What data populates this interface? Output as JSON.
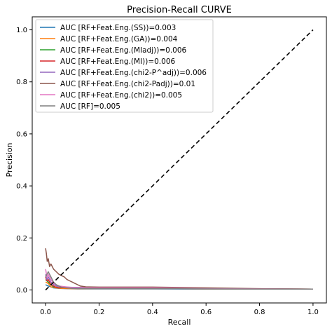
{
  "chart_data": {
    "type": "line",
    "title": "Precision-Recall CURVE",
    "xlabel": "Recall",
    "ylabel": "Precision",
    "xlim": [
      0.0,
      1.0
    ],
    "ylim": [
      0.0,
      1.0
    ],
    "xticks": [
      "0.0",
      "0.2",
      "0.4",
      "0.6",
      "0.8",
      "1.0"
    ],
    "yticks": [
      "0.0",
      "0.2",
      "0.4",
      "0.6",
      "0.8",
      "1.0"
    ],
    "grid": false,
    "legend_position": "top-left",
    "series": [
      {
        "name": "AUC [RF+Feat.Eng.(SS))=0.003",
        "color": "#1f77b4",
        "x": [
          0.0,
          0.01,
          0.02,
          0.03,
          0.05,
          0.08,
          0.12,
          0.2,
          0.4,
          0.6,
          0.8,
          1.0
        ],
        "y": [
          0.02,
          0.015,
          0.012,
          0.008,
          0.006,
          0.005,
          0.004,
          0.004,
          0.004,
          0.003,
          0.003,
          0.003
        ]
      },
      {
        "name": "AUC [RF+Feat.Eng.(GA))=0.004",
        "color": "#ff7f0e",
        "x": [
          0.0,
          0.01,
          0.02,
          0.04,
          0.06,
          0.1,
          0.2,
          0.4,
          0.6,
          0.8,
          1.0
        ],
        "y": [
          0.03,
          0.025,
          0.012,
          0.008,
          0.006,
          0.005,
          0.005,
          0.005,
          0.004,
          0.004,
          0.003
        ]
      },
      {
        "name": "AUC [RF+Feat.Eng.(MIadj))=0.006",
        "color": "#2ca02c",
        "x": [
          0.0,
          0.01,
          0.02,
          0.03,
          0.05,
          0.1,
          0.2,
          0.4,
          0.6,
          0.8,
          1.0
        ],
        "y": [
          0.04,
          0.03,
          0.02,
          0.012,
          0.01,
          0.008,
          0.008,
          0.007,
          0.005,
          0.004,
          0.003
        ]
      },
      {
        "name": "AUC [RF+Feat.Eng.(MI))=0.006",
        "color": "#d62728",
        "x": [
          0.0,
          0.005,
          0.01,
          0.02,
          0.04,
          0.08,
          0.2,
          0.4,
          0.6,
          0.8,
          1.0
        ],
        "y": [
          0.05,
          0.035,
          0.04,
          0.02,
          0.01,
          0.008,
          0.008,
          0.008,
          0.006,
          0.004,
          0.003
        ]
      },
      {
        "name": "AUC [RF+Feat.Eng.(chi2-P^adj))=0.006",
        "color": "#9467bd",
        "x": [
          0.0,
          0.005,
          0.01,
          0.02,
          0.03,
          0.05,
          0.1,
          0.2,
          0.4,
          0.6,
          0.8,
          1.0
        ],
        "y": [
          0.06,
          0.04,
          0.05,
          0.03,
          0.02,
          0.012,
          0.01,
          0.01,
          0.009,
          0.006,
          0.004,
          0.003
        ]
      },
      {
        "name": "AUC [RF+Feat.Eng.(chi2-Padj))=0.01",
        "color": "#8c564b",
        "x": [
          0.0,
          0.003,
          0.006,
          0.01,
          0.015,
          0.02,
          0.03,
          0.04,
          0.05,
          0.06,
          0.07,
          0.08,
          0.09,
          0.1,
          0.11,
          0.12,
          0.13,
          0.15,
          0.2,
          0.4,
          0.6,
          0.8,
          1.0
        ],
        "y": [
          0.16,
          0.14,
          0.11,
          0.12,
          0.09,
          0.1,
          0.08,
          0.07,
          0.06,
          0.055,
          0.05,
          0.04,
          0.035,
          0.03,
          0.025,
          0.02,
          0.015,
          0.012,
          0.011,
          0.011,
          0.008,
          0.005,
          0.003
        ]
      },
      {
        "name": "AUC [RF+Feat.Eng.(chi2))=0.005",
        "color": "#e377c2",
        "x": [
          0.0,
          0.005,
          0.01,
          0.02,
          0.03,
          0.05,
          0.1,
          0.2,
          0.4,
          0.6,
          0.8,
          1.0
        ],
        "y": [
          0.08,
          0.05,
          0.06,
          0.04,
          0.025,
          0.015,
          0.009,
          0.008,
          0.008,
          0.005,
          0.004,
          0.003
        ]
      },
      {
        "name": "AUC [RF]=0.005",
        "color": "#7f7f7f",
        "x": [
          0.0,
          0.005,
          0.01,
          0.02,
          0.03,
          0.04,
          0.06,
          0.1,
          0.2,
          0.4,
          0.6,
          0.8,
          1.0
        ],
        "y": [
          0.05,
          0.06,
          0.07,
          0.05,
          0.03,
          0.02,
          0.01,
          0.006,
          0.005,
          0.005,
          0.004,
          0.003,
          0.003
        ]
      }
    ],
    "reference_line": {
      "style": "dashed",
      "color": "#000000",
      "x": [
        0.0,
        1.0
      ],
      "y": [
        0.0,
        1.0
      ]
    }
  }
}
